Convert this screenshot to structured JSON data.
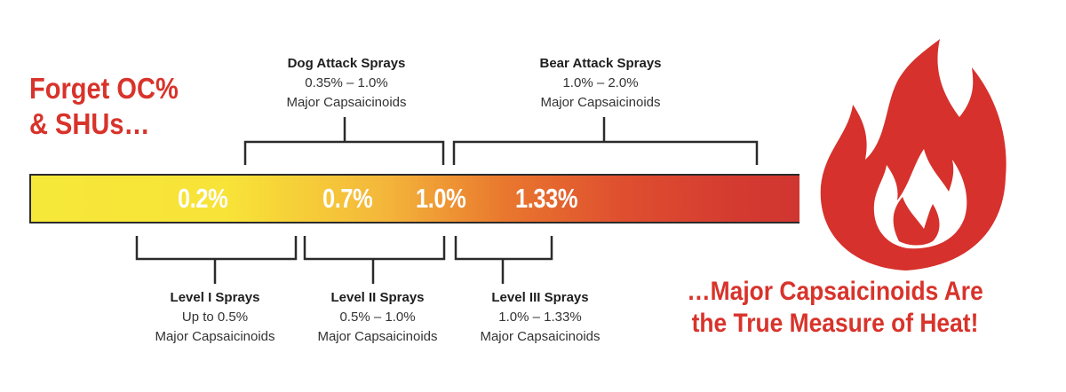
{
  "headline": {
    "line1": "Forget OC%",
    "line2": "& SHUs…"
  },
  "bar_labels": [
    "0.2%",
    "0.7%",
    "1.0%",
    "1.33%"
  ],
  "groups_above": [
    {
      "title": "Dog Attack Sprays",
      "range": "0.35% – 1.0%",
      "note": "Major Capsaicinoids"
    },
    {
      "title": "Bear Attack Sprays",
      "range": "1.0% – 2.0%",
      "note": "Major Capsaicinoids"
    }
  ],
  "groups_below": [
    {
      "title": "Level I Sprays",
      "range": "Up to 0.5%",
      "note": "Major Capsaicinoids"
    },
    {
      "title": "Level II Sprays",
      "range": "0.5% – 1.0%",
      "note": "Major Capsaicinoids"
    },
    {
      "title": "Level III Sprays",
      "range": "1.0% – 1.33%",
      "note": "Major Capsaicinoids"
    }
  ],
  "tagline": {
    "line1": "…Major Capsaicinoids Are",
    "line2": "the True Measure of Heat!"
  },
  "colors": {
    "accent_red": "#d8332b",
    "bar_start": "#f6e839",
    "bar_end": "#cf3530",
    "flame": "#d6312c"
  },
  "icons": {
    "flame": "flame-icon"
  }
}
